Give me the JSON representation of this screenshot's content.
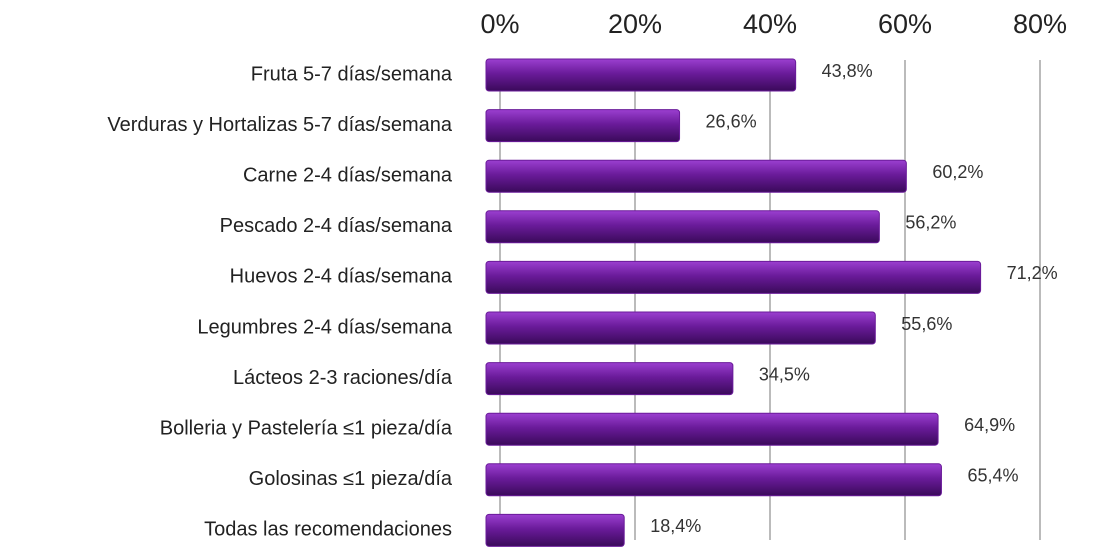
{
  "chart_data": {
    "type": "bar",
    "orientation": "horizontal",
    "categories": [
      "Fruta 5-7 días/semana",
      "Verduras y Hortalizas 5-7 días/semana",
      "Carne 2-4 días/semana",
      "Pescado 2-4 días/semana",
      "Huevos 2-4 días/semana",
      "Legumbres 2-4 días/semana",
      "Lácteos 2-3 raciones/día",
      "Bolleria y Pastelería ≤1 pieza/día",
      "Golosinas ≤1 pieza/día",
      "Todas las recomendaciones"
    ],
    "values": [
      43.8,
      26.6,
      60.2,
      56.2,
      71.2,
      55.6,
      34.5,
      64.9,
      65.4,
      18.4
    ],
    "value_labels": [
      "43,8%",
      "26,6%",
      "60,2%",
      "56,2%",
      "71,2%",
      "55,6%",
      "34,5%",
      "64,9%",
      "65,4%",
      "18,4%"
    ],
    "color": "#6a1b9a",
    "xlim": [
      0,
      80
    ],
    "xticks": [
      {
        "value": 0,
        "label": "0%"
      },
      {
        "value": 20,
        "label": "20%"
      },
      {
        "value": 40,
        "label": "40%"
      },
      {
        "value": 60,
        "label": "60%"
      },
      {
        "value": 80,
        "label": "80%"
      }
    ],
    "grid": true
  }
}
